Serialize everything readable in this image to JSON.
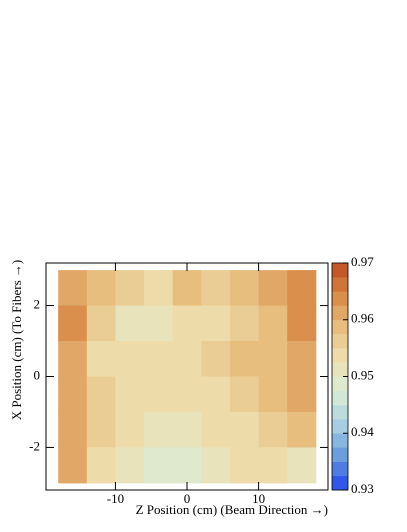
{
  "chart_data": {
    "type": "contour",
    "xlabel": "Z Position (cm) (Beam Direction →)",
    "ylabel": "X Position (cm) (To Fibers →)",
    "x": [
      -16,
      -12,
      -8,
      -4,
      0,
      4,
      8,
      12,
      16
    ],
    "y": [
      2.5,
      1.5,
      0.5,
      -0.5,
      -1.5,
      -2.5
    ],
    "z": [
      [
        0.962,
        0.958,
        0.956,
        0.955,
        0.96,
        0.957,
        0.958,
        0.962,
        0.963
      ],
      [
        0.963,
        0.957,
        0.952,
        0.951,
        0.954,
        0.955,
        0.956,
        0.959,
        0.963
      ],
      [
        0.961,
        0.955,
        0.953,
        0.953,
        0.954,
        0.956,
        0.958,
        0.958,
        0.961
      ],
      [
        0.961,
        0.956,
        0.954,
        0.954,
        0.953,
        0.955,
        0.956,
        0.958,
        0.962
      ],
      [
        0.962,
        0.956,
        0.953,
        0.952,
        0.952,
        0.953,
        0.955,
        0.957,
        0.959
      ],
      [
        0.961,
        0.955,
        0.952,
        0.949,
        0.95,
        0.951,
        0.953,
        0.955,
        0.952
      ]
    ],
    "xlim": [
      -19.7,
      19.7
    ],
    "ylim": [
      -3.2,
      3.2
    ],
    "xticks": [
      -10,
      0,
      10
    ],
    "yticks": [
      -2,
      0,
      2
    ],
    "zlim": [
      0.93,
      0.97
    ],
    "zticks": [
      0.93,
      0.94,
      0.95,
      0.96,
      0.97
    ],
    "colormap": [
      "#2244ee",
      "#6699dd",
      "#a8d0e0",
      "#d8ecd8",
      "#eee0b0",
      "#e8c080",
      "#d88a48",
      "#c04a20"
    ]
  }
}
